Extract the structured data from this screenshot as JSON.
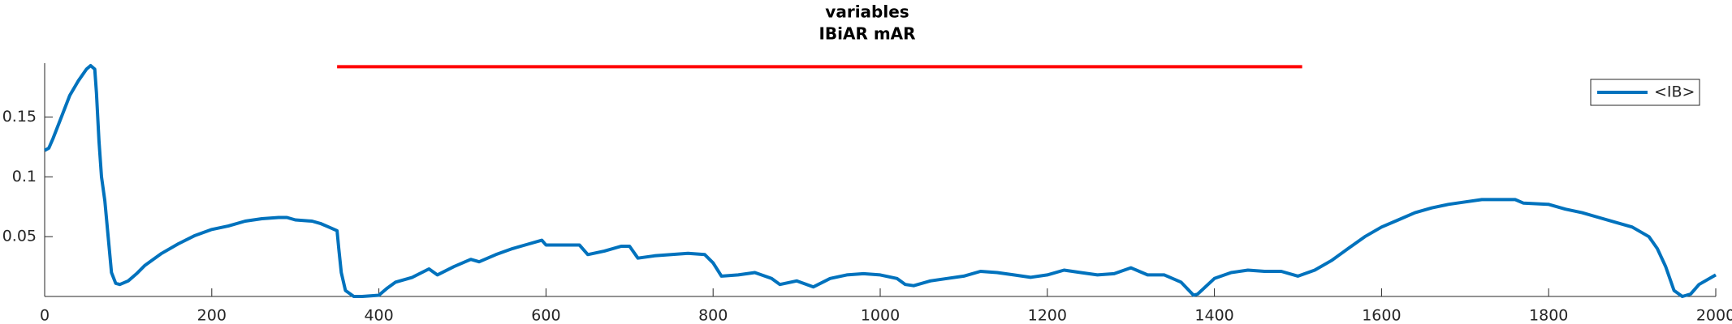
{
  "chart_data": {
    "type": "line",
    "title": "variables",
    "subtitle": "IBiAR mAR",
    "x": [
      0,
      5,
      10,
      20,
      30,
      40,
      50,
      55,
      60,
      62,
      65,
      68,
      72,
      76,
      80,
      85,
      90,
      100,
      110,
      120,
      140,
      160,
      180,
      200,
      220,
      240,
      260,
      280,
      290,
      300,
      320,
      330,
      340,
      350,
      352,
      355,
      360,
      370,
      380,
      400,
      410,
      420,
      440,
      460,
      470,
      490,
      510,
      520,
      540,
      560,
      580,
      595,
      600,
      620,
      640,
      650,
      670,
      690,
      700,
      710,
      730,
      750,
      770,
      790,
      800,
      810,
      830,
      850,
      870,
      880,
      900,
      920,
      940,
      960,
      980,
      1000,
      1020,
      1030,
      1040,
      1060,
      1080,
      1100,
      1120,
      1140,
      1160,
      1180,
      1200,
      1220,
      1240,
      1260,
      1280,
      1300,
      1320,
      1340,
      1360,
      1375,
      1380,
      1400,
      1420,
      1440,
      1460,
      1480,
      1500,
      1520,
      1540,
      1560,
      1580,
      1600,
      1620,
      1640,
      1660,
      1680,
      1700,
      1720,
      1740,
      1760,
      1770,
      1800,
      1820,
      1840,
      1860,
      1880,
      1900,
      1920,
      1930,
      1940,
      1950,
      1960,
      1970,
      1980,
      2000
    ],
    "series": [
      {
        "name": "<IB>",
        "color": "#0072bd",
        "values": [
          0.122,
          0.124,
          0.132,
          0.15,
          0.168,
          0.18,
          0.19,
          0.193,
          0.19,
          0.17,
          0.13,
          0.1,
          0.08,
          0.05,
          0.02,
          0.011,
          0.01,
          0.013,
          0.019,
          0.026,
          0.036,
          0.044,
          0.051,
          0.056,
          0.059,
          0.063,
          0.065,
          0.066,
          0.066,
          0.064,
          0.063,
          0.061,
          0.058,
          0.055,
          0.04,
          0.02,
          0.005,
          0.0,
          0.0,
          0.001,
          0.007,
          0.012,
          0.016,
          0.023,
          0.018,
          0.025,
          0.031,
          0.029,
          0.035,
          0.04,
          0.044,
          0.047,
          0.043,
          0.043,
          0.043,
          0.035,
          0.038,
          0.042,
          0.042,
          0.032,
          0.034,
          0.035,
          0.036,
          0.035,
          0.028,
          0.017,
          0.018,
          0.02,
          0.015,
          0.01,
          0.013,
          0.008,
          0.015,
          0.018,
          0.019,
          0.018,
          0.015,
          0.01,
          0.009,
          0.013,
          0.015,
          0.017,
          0.021,
          0.02,
          0.018,
          0.016,
          0.018,
          0.022,
          0.02,
          0.018,
          0.019,
          0.024,
          0.018,
          0.018,
          0.012,
          0.001,
          0.002,
          0.015,
          0.02,
          0.022,
          0.021,
          0.021,
          0.017,
          0.022,
          0.03,
          0.04,
          0.05,
          0.058,
          0.064,
          0.07,
          0.074,
          0.077,
          0.079,
          0.081,
          0.081,
          0.081,
          0.078,
          0.077,
          0.073,
          0.07,
          0.066,
          0.062,
          0.058,
          0.05,
          0.04,
          0.025,
          0.005,
          0.0,
          0.002,
          0.01,
          0.018
        ]
      }
    ],
    "hline": {
      "xmin": 350,
      "xmax": 1505,
      "y": 0.192,
      "color": "#ff0000"
    },
    "xlim": [
      0,
      2000
    ],
    "ylim": [
      0,
      0.195
    ],
    "xticks": [
      0,
      200,
      400,
      600,
      800,
      1000,
      1200,
      1400,
      1600,
      1800,
      2000
    ],
    "yticks": [
      0.05,
      0.1,
      0.15
    ],
    "legend": "northeast"
  }
}
